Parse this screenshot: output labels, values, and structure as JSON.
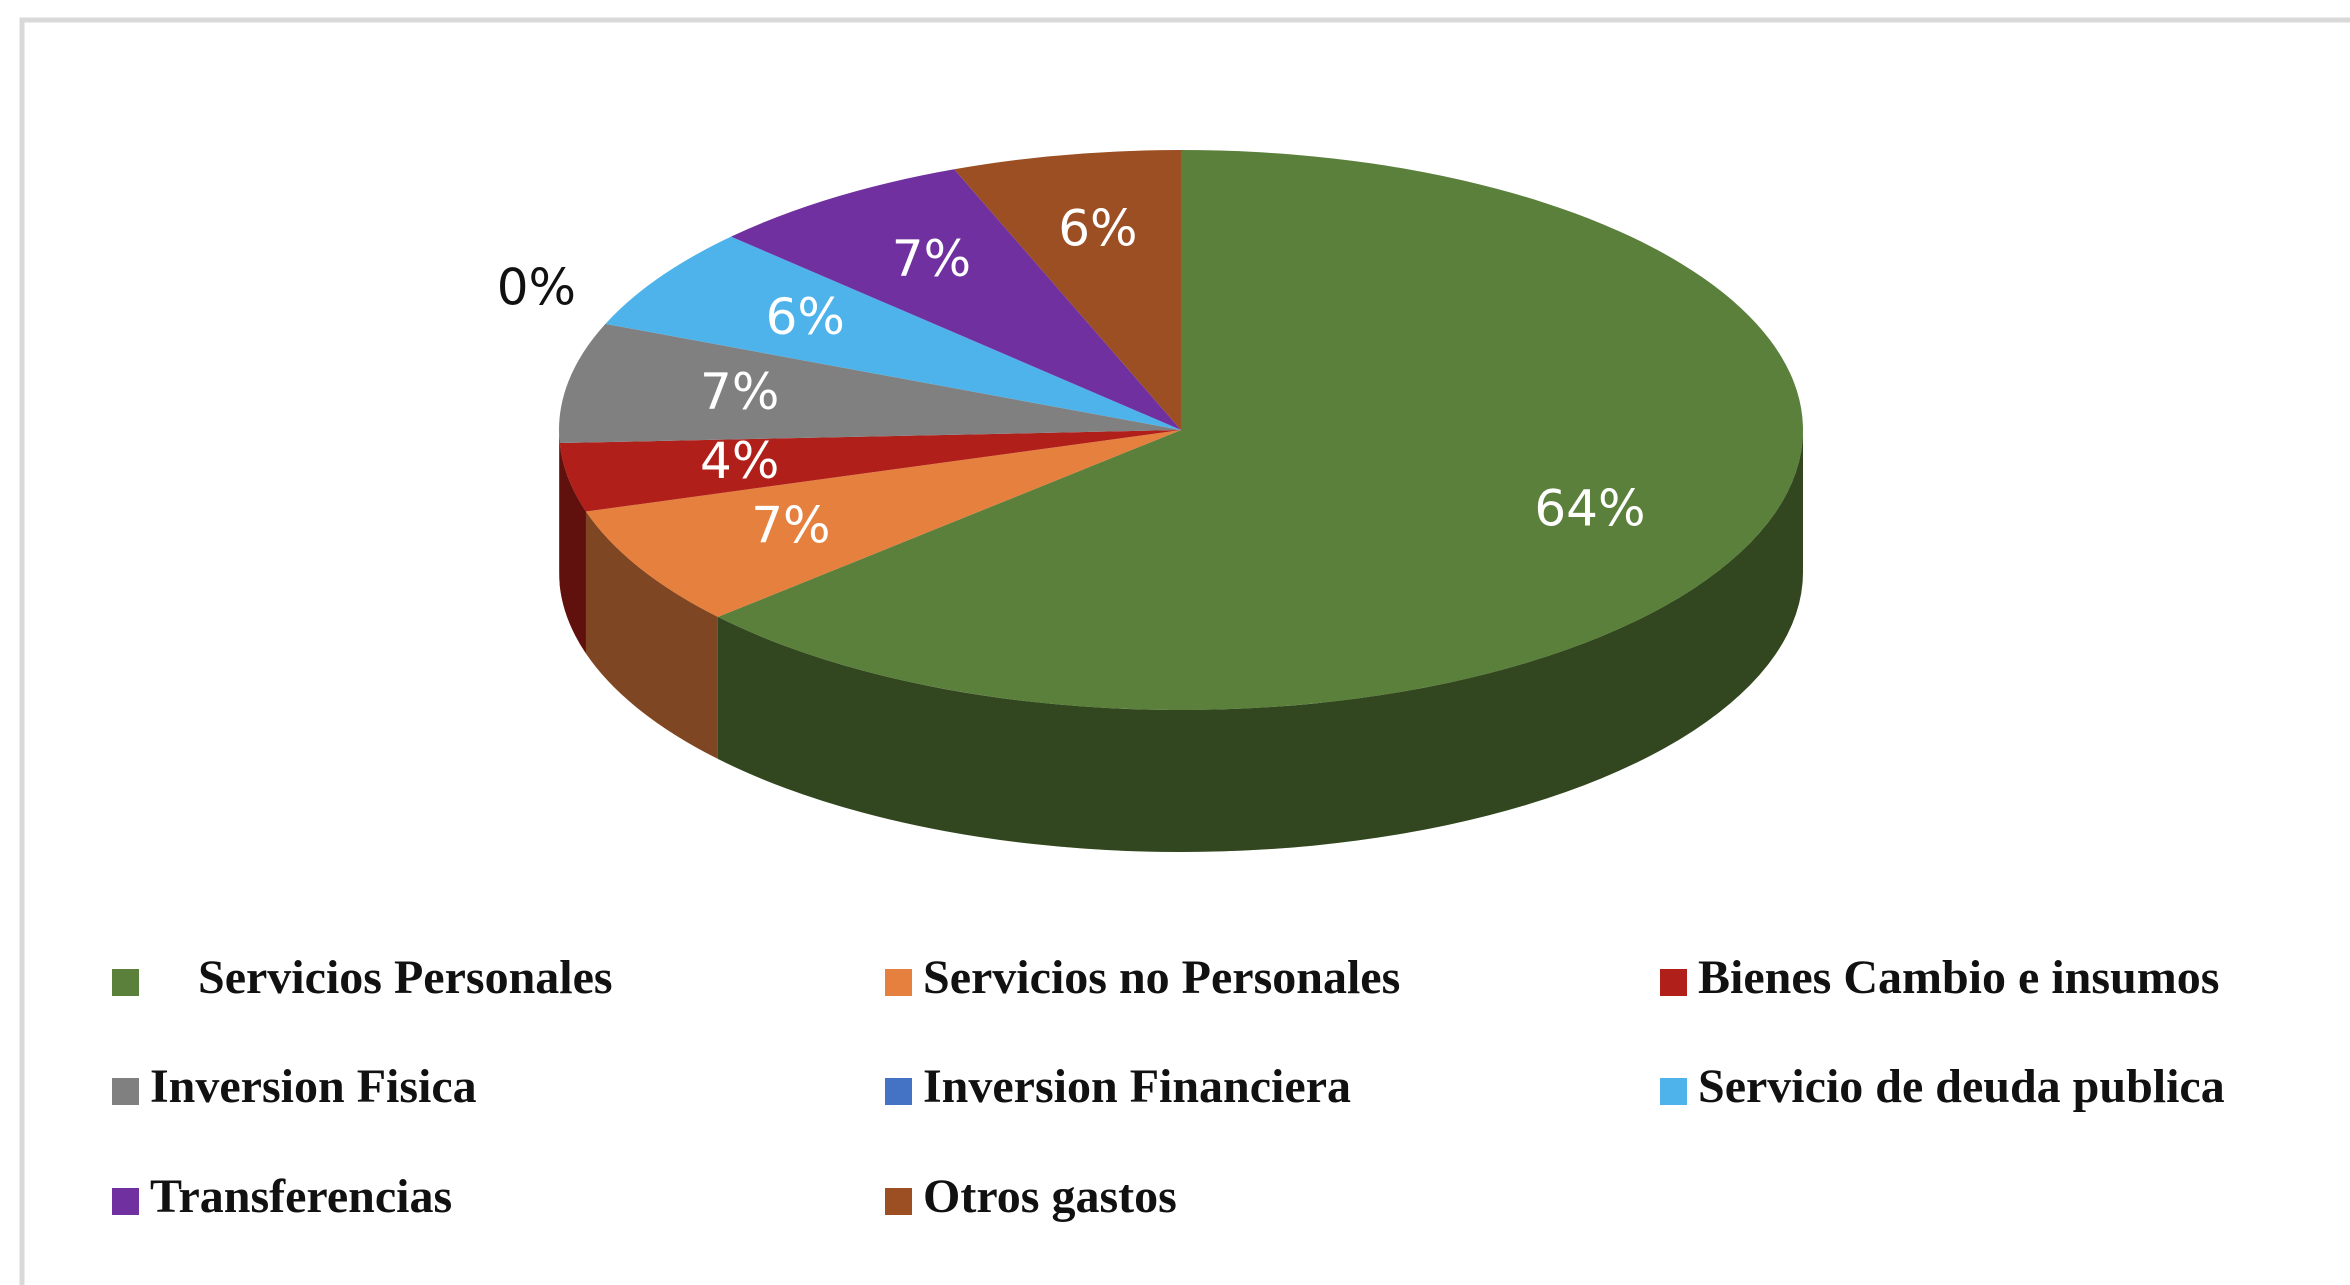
{
  "chart_data": {
    "type": "pie",
    "categories": [
      "Servicios Personales",
      "Servicios no Personales",
      "Bienes Cambio e insumos",
      "Inversion Fisica",
      "Inversion Financiera",
      "Servicio de deuda publica",
      "Transferencias",
      "Otros gastos"
    ],
    "values": [
      64,
      7,
      4,
      7,
      0,
      6,
      7,
      6
    ],
    "value_labels": [
      "64%",
      "7%",
      "4%",
      "7%",
      "0%",
      "6%",
      "7%",
      "6%"
    ],
    "colors": [
      "#5b803b",
      "#e5803f",
      "#b01f19",
      "#808080",
      "#4472c4",
      "#4db3ea",
      "#7030a0",
      "#9c4f23"
    ]
  }
}
